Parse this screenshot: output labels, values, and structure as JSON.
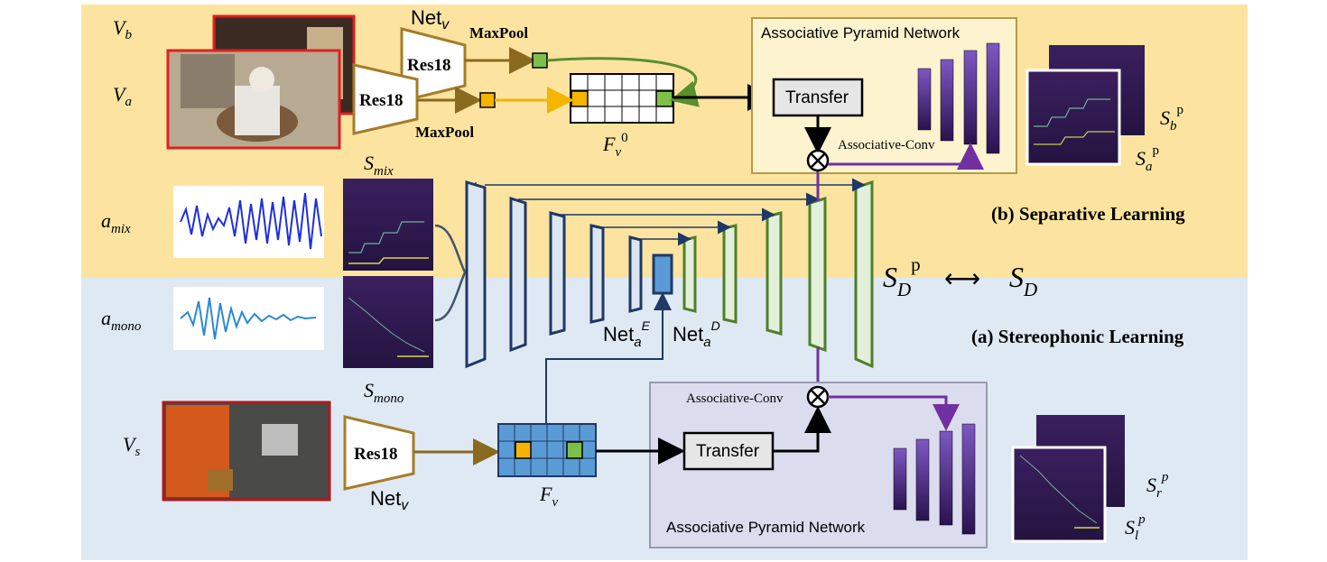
{
  "labels": {
    "v_b": "V_b",
    "v_a": "V_a",
    "v_s": "V_s",
    "net_v_top": "Net_v",
    "net_v_bottom": "Net_v",
    "res18": "Res18",
    "maxpool": "MaxPool",
    "f_v0": "F_v^0",
    "f_v": "F_v",
    "transfer": "Transfer",
    "apn": "Associative Pyramid Network",
    "assoc_conv": "Associative-Conv",
    "s_b": "S_b^p",
    "s_a": "S_a^p",
    "s_r": "S_r^p",
    "s_l": "S_l^p",
    "a_mix": "a_mix",
    "a_mono": "a_mono",
    "s_mix": "S_mix",
    "s_mono": "S_mono",
    "net_a_e": "Net_a^E",
    "net_a_d": "Net_a^D",
    "s_d_p": "S_D^p",
    "s_d": "S_D",
    "arrow": "⟷",
    "sep_learning": "(b) Separative Learning",
    "stereo_learning": "(a) Stereophonic Learning"
  },
  "colors": {
    "top_bg": "#fce4a0",
    "bottom_bg": "#dfe9f4",
    "encoder": "#1f3864",
    "decoder": "#4f7f2a",
    "resnet": "#a57c2a",
    "purple": "#7030a0",
    "orange": "#f4b400",
    "green": "#7cc04a",
    "grid_blue": "#5b9bd5"
  }
}
